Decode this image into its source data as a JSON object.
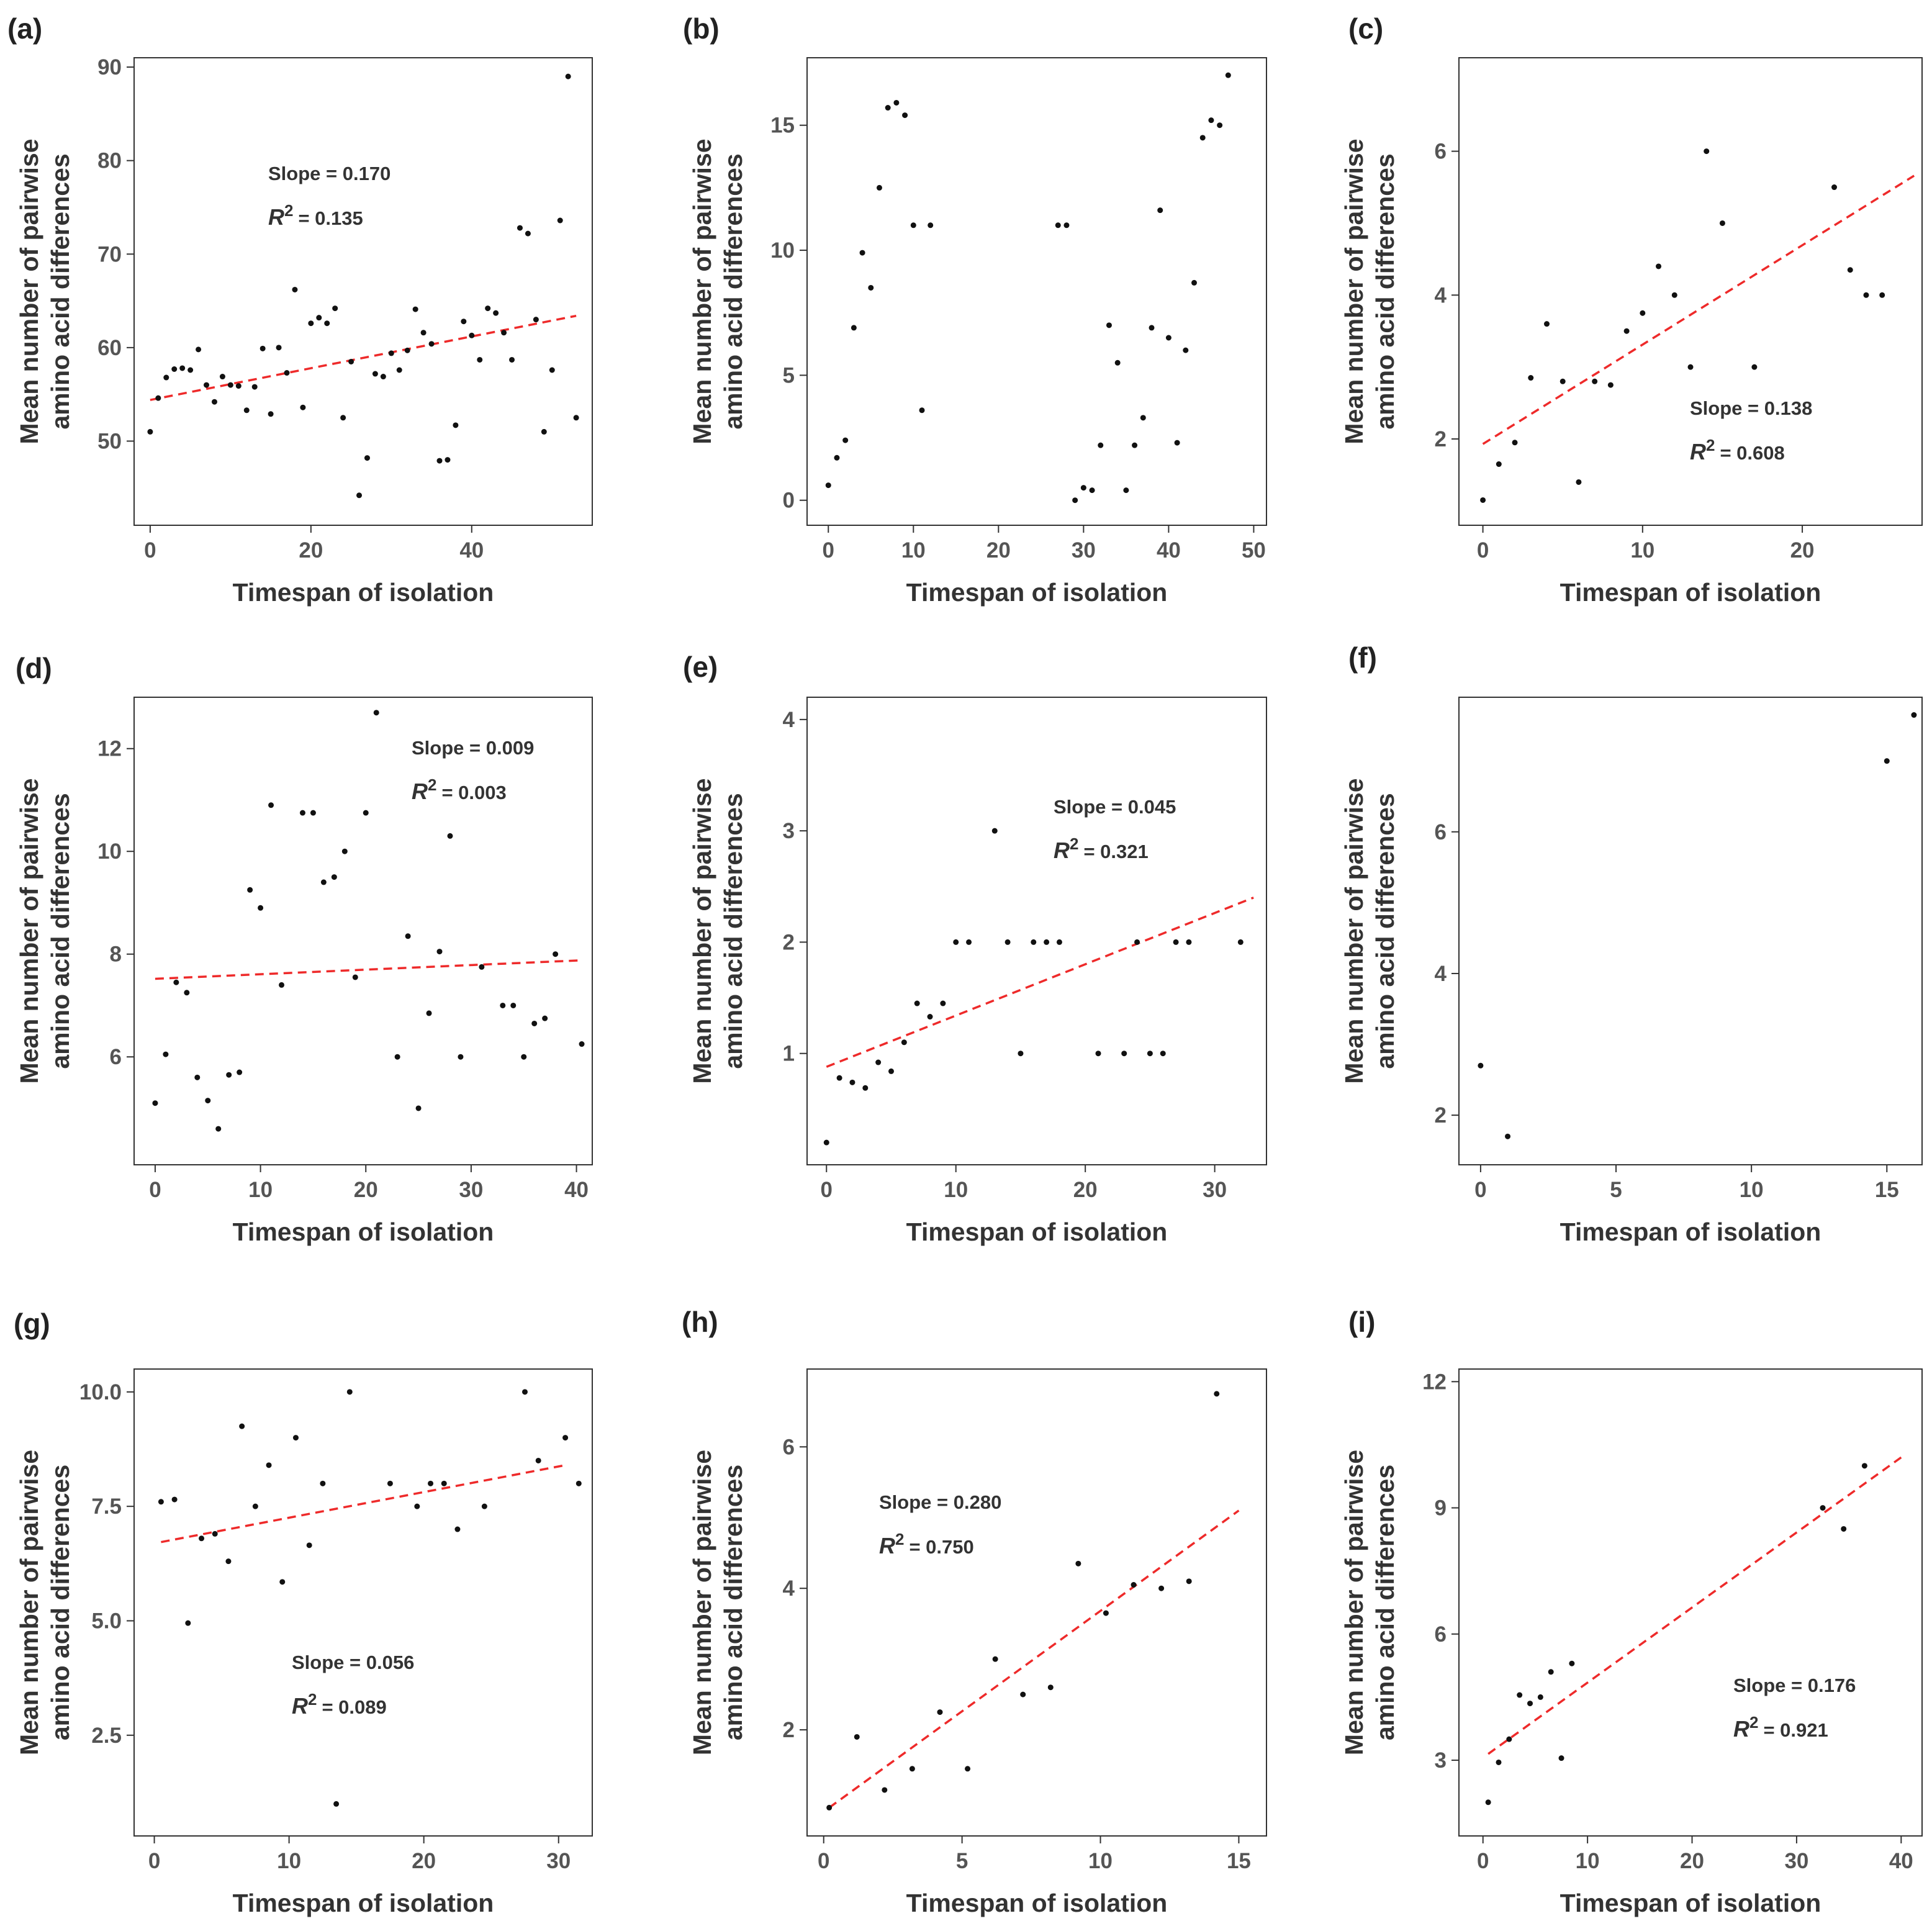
{
  "chart_data": [
    {
      "type": "scatter",
      "panel": "(a)",
      "xlabel": "Timespan of isolation",
      "ylabel_line1": "Mean number of pairwise",
      "ylabel_line2": "amino acid differences",
      "xlim": [
        -2,
        55
      ],
      "ylim": [
        41,
        91
      ],
      "xticks": [
        0,
        20,
        40
      ],
      "yticks": [
        50,
        60,
        70,
        80,
        90
      ],
      "slope_label": "Slope = 0.170",
      "r2_prefix": "R",
      "r2_value": "= 0.135",
      "fit": {
        "x": [
          0,
          53
        ],
        "y": [
          54.4,
          63.4
        ]
      },
      "points": [
        [
          0,
          51
        ],
        [
          1,
          54.6
        ],
        [
          2,
          56.8
        ],
        [
          3,
          57.7
        ],
        [
          4,
          57.8
        ],
        [
          5,
          57.6
        ],
        [
          6,
          59.8
        ],
        [
          7,
          56
        ],
        [
          8,
          54.2
        ],
        [
          9,
          56.9
        ],
        [
          10,
          56
        ],
        [
          11,
          55.9
        ],
        [
          12,
          53.3
        ],
        [
          13,
          55.8
        ],
        [
          14,
          59.9
        ],
        [
          15,
          52.9
        ],
        [
          16,
          60
        ],
        [
          17,
          57.3
        ],
        [
          18,
          66.2
        ],
        [
          19,
          53.6
        ],
        [
          20,
          62.6
        ],
        [
          21,
          63.2
        ],
        [
          22,
          62.6
        ],
        [
          23,
          64.2
        ],
        [
          24,
          52.5
        ],
        [
          25,
          58.5
        ],
        [
          26,
          44.2
        ],
        [
          27,
          48.2
        ],
        [
          28,
          57.2
        ],
        [
          29,
          56.9
        ],
        [
          30,
          59.4
        ],
        [
          31,
          57.6
        ],
        [
          32,
          59.7
        ],
        [
          33,
          64.1
        ],
        [
          34,
          61.6
        ],
        [
          35,
          60.4
        ],
        [
          36,
          47.9
        ],
        [
          37,
          48
        ],
        [
          38,
          51.7
        ],
        [
          39,
          62.8
        ],
        [
          40,
          61.3
        ],
        [
          41,
          58.7
        ],
        [
          42,
          64.2
        ],
        [
          43,
          63.7
        ],
        [
          44,
          61.6
        ],
        [
          45,
          58.7
        ],
        [
          46,
          72.8
        ],
        [
          47,
          72.2
        ],
        [
          48,
          63
        ],
        [
          49,
          51
        ],
        [
          50,
          57.6
        ],
        [
          51,
          73.6
        ],
        [
          52,
          89
        ],
        [
          53,
          52.5
        ]
      ]
    },
    {
      "type": "scatter",
      "panel": "(b)",
      "xlabel": "Timespan of isolation",
      "ylabel_line1": "Mean number of pairwise",
      "ylabel_line2": "amino acid differences",
      "xlim": [
        -2.5,
        51.5
      ],
      "ylim": [
        -1,
        17.7
      ],
      "xticks": [
        0,
        10,
        20,
        30,
        40,
        50
      ],
      "yticks": [
        0,
        5,
        10,
        15
      ],
      "points": [
        [
          0,
          0.6
        ],
        [
          1,
          1.7
        ],
        [
          2,
          2.4
        ],
        [
          3,
          6.9
        ],
        [
          4,
          9.9
        ],
        [
          5,
          8.5
        ],
        [
          6,
          12.5
        ],
        [
          7,
          15.7
        ],
        [
          8,
          15.9
        ],
        [
          9,
          15.4
        ],
        [
          10,
          11
        ],
        [
          11,
          3.6
        ],
        [
          12,
          11
        ],
        [
          27,
          11
        ],
        [
          28,
          11
        ],
        [
          29,
          0
        ],
        [
          30,
          0.5
        ],
        [
          31,
          0.4
        ],
        [
          32,
          2.2
        ],
        [
          33,
          7
        ],
        [
          34,
          5.5
        ],
        [
          35,
          0.4
        ],
        [
          36,
          2.2
        ],
        [
          37,
          3.3
        ],
        [
          38,
          6.9
        ],
        [
          39,
          11.6
        ],
        [
          40,
          6.5
        ],
        [
          41,
          2.3
        ],
        [
          42,
          6
        ],
        [
          43,
          8.7
        ],
        [
          44,
          14.5
        ],
        [
          45,
          15.2
        ],
        [
          46,
          15
        ],
        [
          47,
          17
        ]
      ]
    },
    {
      "type": "scatter",
      "panel": "(c)",
      "xlabel": "Timespan of isolation",
      "ylabel_line1": "Mean number of pairwise",
      "ylabel_line2": "amino acid differences",
      "xlim": [
        -1.5,
        27.5
      ],
      "ylim": [
        0.8,
        7.3
      ],
      "xticks": [
        0,
        10,
        20
      ],
      "yticks": [
        2,
        4,
        6
      ],
      "slope_label": "Slope = 0.138",
      "r2_prefix": "R",
      "r2_value": "= 0.608",
      "fit": {
        "x": [
          0,
          27
        ],
        "y": [
          1.93,
          5.66
        ]
      },
      "points": [
        [
          0,
          1.15
        ],
        [
          1,
          1.65
        ],
        [
          2,
          1.95
        ],
        [
          3,
          2.85
        ],
        [
          4,
          3.6
        ],
        [
          5,
          2.8
        ],
        [
          6,
          1.4
        ],
        [
          7,
          2.8
        ],
        [
          8,
          2.75
        ],
        [
          9,
          3.5
        ],
        [
          10,
          3.75
        ],
        [
          11,
          4.4
        ],
        [
          12,
          4
        ],
        [
          13,
          3
        ],
        [
          14,
          6
        ],
        [
          15,
          5
        ],
        [
          17,
          3
        ],
        [
          22,
          5.5
        ],
        [
          23,
          4.35
        ],
        [
          24,
          4
        ],
        [
          25,
          4
        ]
      ]
    },
    {
      "type": "scatter",
      "panel": "(d)",
      "xlabel": "Timespan of isolation",
      "ylabel_line1": "Mean number of pairwise",
      "ylabel_line2": "amino acid differences",
      "xlim": [
        -2,
        41.5
      ],
      "ylim": [
        3.9,
        13
      ],
      "xticks": [
        0,
        10,
        20,
        30,
        40
      ],
      "yticks": [
        6,
        8,
        10,
        12
      ],
      "slope_label": "Slope = 0.009",
      "r2_prefix": "R",
      "r2_value": "= 0.003",
      "fit": {
        "x": [
          0,
          40.5
        ],
        "y": [
          7.52,
          7.88
        ]
      },
      "points": [
        [
          0,
          5.1
        ],
        [
          1,
          6.05
        ],
        [
          2,
          7.45
        ],
        [
          3,
          7.25
        ],
        [
          4,
          5.6
        ],
        [
          5,
          5.15
        ],
        [
          6,
          4.6
        ],
        [
          7,
          5.65
        ],
        [
          8,
          5.7
        ],
        [
          9,
          9.25
        ],
        [
          10,
          8.9
        ],
        [
          11,
          10.9
        ],
        [
          12,
          7.4
        ],
        [
          14,
          10.75
        ],
        [
          15,
          10.75
        ],
        [
          16,
          9.4
        ],
        [
          17,
          9.5
        ],
        [
          18,
          10
        ],
        [
          19,
          7.55
        ],
        [
          20,
          10.75
        ],
        [
          21,
          12.7
        ],
        [
          23,
          6
        ],
        [
          24,
          8.35
        ],
        [
          25,
          5
        ],
        [
          26,
          6.85
        ],
        [
          27,
          8.05
        ],
        [
          28,
          10.3
        ],
        [
          29,
          6
        ],
        [
          31,
          7.75
        ],
        [
          33,
          7
        ],
        [
          34,
          7
        ],
        [
          35,
          6
        ],
        [
          36,
          6.65
        ],
        [
          37,
          6.75
        ],
        [
          38,
          8
        ],
        [
          40.5,
          6.25
        ]
      ]
    },
    {
      "type": "scatter",
      "panel": "(e)",
      "xlabel": "Timespan of isolation",
      "ylabel_line1": "Mean number of pairwise",
      "ylabel_line2": "amino acid differences",
      "xlim": [
        -1.5,
        34
      ],
      "ylim": [
        0,
        4.2
      ],
      "xticks": [
        0,
        10,
        20,
        30
      ],
      "yticks": [
        1,
        2,
        3,
        4
      ],
      "slope_label": "Slope = 0.045",
      "r2_prefix": "R",
      "r2_value": "= 0.321",
      "fit": {
        "x": [
          0,
          33
        ],
        "y": [
          0.88,
          2.4
        ]
      },
      "points": [
        [
          0,
          0.2
        ],
        [
          1,
          0.78
        ],
        [
          2,
          0.74
        ],
        [
          3,
          0.69
        ],
        [
          4,
          0.92
        ],
        [
          5,
          0.84
        ],
        [
          6,
          1.1
        ],
        [
          7,
          1.45
        ],
        [
          8,
          1.33
        ],
        [
          9,
          1.45
        ],
        [
          10,
          2
        ],
        [
          11,
          2
        ],
        [
          13,
          3
        ],
        [
          14,
          2
        ],
        [
          15,
          1
        ],
        [
          16,
          2
        ],
        [
          17,
          2
        ],
        [
          18,
          2
        ],
        [
          21,
          1
        ],
        [
          23,
          1
        ],
        [
          24,
          2
        ],
        [
          25,
          1
        ],
        [
          26,
          1
        ],
        [
          27,
          2
        ],
        [
          28,
          2
        ],
        [
          32,
          2
        ]
      ]
    },
    {
      "type": "scatter",
      "panel": "(f)",
      "xlabel": "Timespan of isolation",
      "ylabel_line1": "Mean number of pairwise",
      "ylabel_line2": "amino acid differences",
      "xlim": [
        -0.8,
        16.3
      ],
      "ylim": [
        1.3,
        7.9
      ],
      "xticks": [
        0,
        5,
        10,
        15
      ],
      "yticks": [
        2,
        4,
        6
      ],
      "points": [
        [
          0,
          2.7
        ],
        [
          1,
          1.7
        ],
        [
          15,
          7
        ],
        [
          16,
          7.65
        ]
      ]
    },
    {
      "type": "scatter",
      "panel": "(g)",
      "xlabel": "Timespan of isolation",
      "ylabel_line1": "Mean number of pairwise",
      "ylabel_line2": "amino acid differences",
      "xlim": [
        -1.5,
        32.5
      ],
      "ylim": [
        0.3,
        10.5
      ],
      "xticks": [
        0,
        10,
        20,
        30
      ],
      "yticks": [
        2.5,
        5.0,
        7.5,
        10.0
      ],
      "ytick_labels": [
        "2.5",
        "5.0",
        "7.5",
        "10.0"
      ],
      "slope_label": "Slope = 0.056",
      "r2_prefix": "R",
      "r2_value": "= 0.089",
      "fit": {
        "x": [
          0.5,
          30.5
        ],
        "y": [
          6.72,
          8.4
        ]
      },
      "points": [
        [
          0.5,
          7.6
        ],
        [
          1.5,
          7.65
        ],
        [
          2.5,
          4.95
        ],
        [
          3.5,
          6.8
        ],
        [
          4.5,
          6.9
        ],
        [
          5.5,
          6.3
        ],
        [
          6.5,
          9.25
        ],
        [
          7.5,
          7.5
        ],
        [
          8.5,
          8.4
        ],
        [
          9.5,
          5.85
        ],
        [
          10.5,
          9
        ],
        [
          11.5,
          6.65
        ],
        [
          12.5,
          8
        ],
        [
          13.5,
          1
        ],
        [
          14.5,
          10
        ],
        [
          17.5,
          8
        ],
        [
          19.5,
          7.5
        ],
        [
          20.5,
          8
        ],
        [
          21.5,
          8
        ],
        [
          22.5,
          7
        ],
        [
          24.5,
          7.5
        ],
        [
          27.5,
          10
        ],
        [
          28.5,
          8.5
        ],
        [
          30.5,
          9
        ],
        [
          31.5,
          8
        ]
      ]
    },
    {
      "type": "scatter",
      "panel": "(h)",
      "xlabel": "Timespan of isolation",
      "ylabel_line1": "Mean number of pairwise",
      "ylabel_line2": "amino acid differences",
      "xlim": [
        -0.6,
        16
      ],
      "ylim": [
        0.5,
        7.1
      ],
      "xticks": [
        0,
        5,
        10,
        15
      ],
      "yticks": [
        2,
        4,
        6
      ],
      "slope_label": "Slope = 0.280",
      "r2_prefix": "R",
      "r2_value": "= 0.750",
      "fit": {
        "x": [
          0.2,
          15
        ],
        "y": [
          0.9,
          5.1
        ]
      },
      "points": [
        [
          0.2,
          0.9
        ],
        [
          1.2,
          1.9
        ],
        [
          2.2,
          1.15
        ],
        [
          3.2,
          1.45
        ],
        [
          4.2,
          2.25
        ],
        [
          5.2,
          1.45
        ],
        [
          6.2,
          3
        ],
        [
          7.2,
          2.5
        ],
        [
          8.2,
          2.6
        ],
        [
          9.2,
          4.35
        ],
        [
          10.2,
          3.65
        ],
        [
          11.2,
          4.05
        ],
        [
          12.2,
          4
        ],
        [
          13.2,
          4.1
        ],
        [
          14.2,
          6.75
        ]
      ]
    },
    {
      "type": "scatter",
      "panel": "(i)",
      "xlabel": "Timespan of isolation",
      "ylabel_line1": "Mean number of pairwise",
      "ylabel_line2": "amino acid differences",
      "xlim": [
        -2.3,
        42
      ],
      "ylim": [
        1.2,
        12.3
      ],
      "xticks": [
        0,
        10,
        20,
        30,
        40
      ],
      "yticks": [
        3,
        6,
        9,
        12
      ],
      "slope_label": "Slope = 0.176",
      "r2_prefix": "R",
      "r2_value": "= 0.921",
      "fit": {
        "x": [
          0.5,
          40
        ],
        "y": [
          3.15,
          10.2
        ]
      },
      "points": [
        [
          0.5,
          2
        ],
        [
          1.5,
          2.95
        ],
        [
          2.5,
          3.5
        ],
        [
          3.5,
          4.55
        ],
        [
          4.5,
          4.35
        ],
        [
          5.5,
          4.5
        ],
        [
          6.5,
          5.1
        ],
        [
          7.5,
          3.05
        ],
        [
          8.5,
          5.3
        ],
        [
          32.5,
          9
        ],
        [
          34.5,
          8.5
        ],
        [
          36.5,
          10
        ]
      ]
    }
  ]
}
